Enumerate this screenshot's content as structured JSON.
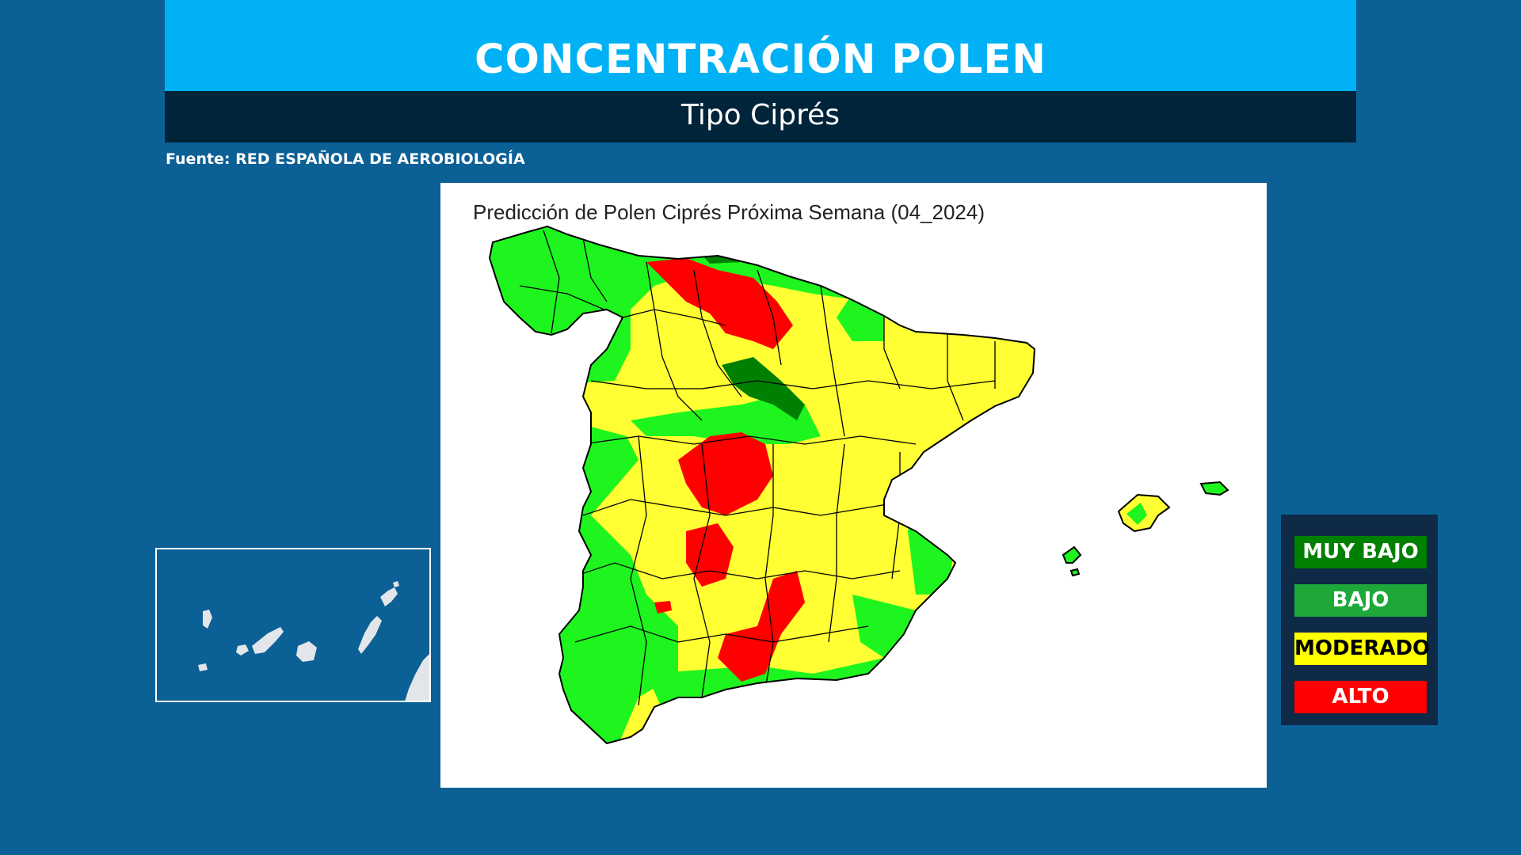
{
  "header": {
    "title": "CONCENTRACIÓN POLEN",
    "subtitle": "Tipo Ciprés"
  },
  "source": "Fuente: RED ESPAÑOLA DE AEROBIOLOGÍA",
  "map": {
    "title": "Predicción de Polen Ciprés Próxima Semana (04_2024)"
  },
  "legend": {
    "items": [
      {
        "label": "MUY BAJO",
        "color": "#008000",
        "text_color": "#ffffff"
      },
      {
        "label": "BAJO",
        "color": "#1ea83a",
        "text_color": "#ffffff"
      },
      {
        "label": "MODERADO",
        "color": "#ffff00",
        "text_color": "#000000"
      },
      {
        "label": "ALTO",
        "color": "#ff0000",
        "text_color": "#ffffff"
      }
    ]
  },
  "colors": {
    "background": "#0b6095",
    "title_band": "#00b1f5",
    "subtitle_band": "#00243a",
    "muy_bajo": "#008000",
    "bajo": "#1ef51e",
    "moderado": "#ffff33",
    "alto": "#ff0000"
  }
}
